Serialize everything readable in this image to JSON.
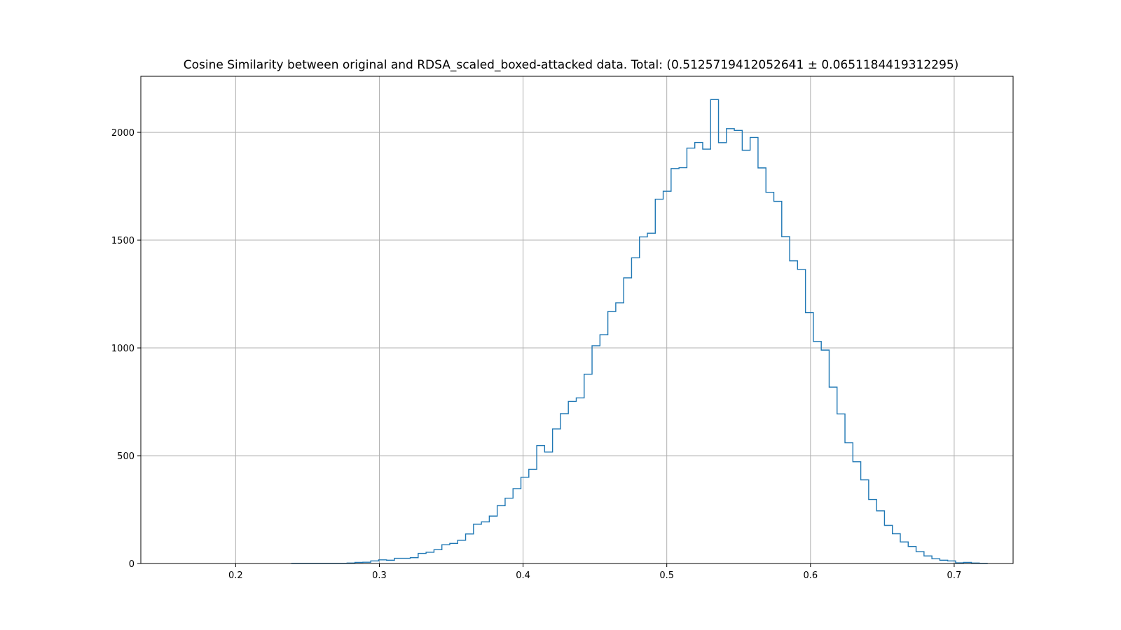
{
  "chart_data": {
    "type": "histogram",
    "title": "Cosine Similarity between original and RDSA_scaled_boxed-attacked data. Total: (0.5125719412052641 ± 0.0651184419312295)",
    "xlabel": "",
    "ylabel": "",
    "xlim": [
      0.134,
      0.741
    ],
    "ylim": [
      0,
      2260
    ],
    "x_ticks": [
      "0.2",
      "0.3",
      "0.4",
      "0.5",
      "0.6",
      "0.7"
    ],
    "x_tick_values": [
      0.2,
      0.3,
      0.4,
      0.5,
      0.6,
      0.7
    ],
    "y_ticks": [
      "0",
      "500",
      "1000",
      "1500",
      "2000"
    ],
    "y_tick_values": [
      0,
      500,
      1000,
      1500,
      2000
    ],
    "grid": true,
    "series_color": "#1f77b4",
    "bin_start": 0.239,
    "bin_width": 0.0055,
    "counts": [
      1,
      1,
      1,
      1,
      1,
      1,
      1,
      2,
      5,
      6,
      12,
      17,
      15,
      24,
      24,
      27,
      47,
      52,
      64,
      87,
      93,
      108,
      137,
      182,
      193,
      220,
      268,
      303,
      347,
      400,
      437,
      547,
      517,
      624,
      695,
      752,
      768,
      878,
      1010,
      1061,
      1169,
      1209,
      1325,
      1418,
      1515,
      1532,
      1690,
      1727,
      1832,
      1836,
      1927,
      1953,
      1922,
      2152,
      1952,
      2017,
      2009,
      1917,
      1976,
      1835,
      1722,
      1680,
      1516,
      1404,
      1364,
      1164,
      1030,
      990,
      818,
      694,
      560,
      472,
      388,
      297,
      244,
      177,
      138,
      100,
      79,
      55,
      35,
      22,
      15,
      12,
      3,
      5,
      2,
      1
    ]
  }
}
